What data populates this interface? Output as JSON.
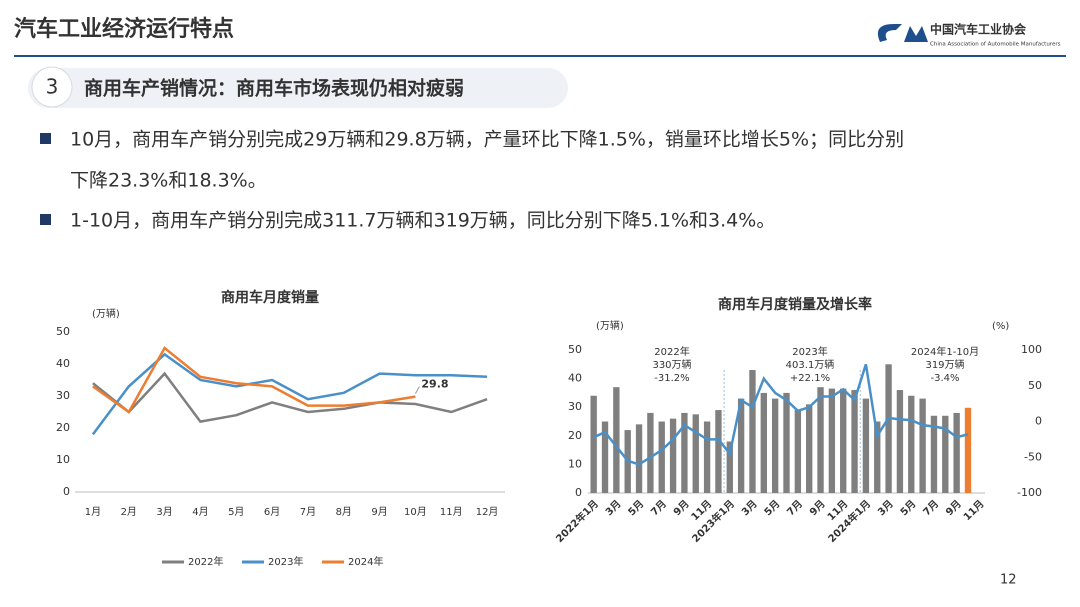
{
  "header": {
    "title": "汽车工业经济运行特点",
    "logo_name": "中国汽车工业协会",
    "logo_english": "China Association of Automobile Manufacturers"
  },
  "section": {
    "number": "3",
    "title": "商用车产销情况：商用车市场表现仍相对疲弱"
  },
  "bullets": [
    "10月，商用车产销分别完成29万辆和29.8万辆，产量环比下降1.5%，销量环比增长5%；同比分别",
    "下降23.3%和18.3%。",
    "1-10月，商用车产销分别完成311.7万辆和319万辆，同比分别下降5.1%和3.4%。"
  ],
  "page_number": "12",
  "chart_data": [
    {
      "type": "line",
      "title": "商用车月度销量",
      "y_label": "(万辆)",
      "categories": [
        "1月",
        "2月",
        "3月",
        "4月",
        "5月",
        "6月",
        "7月",
        "8月",
        "9月",
        "10月",
        "11月",
        "12月"
      ],
      "ylim": [
        0,
        50
      ],
      "yticks": [
        0,
        10,
        20,
        30,
        40,
        50
      ],
      "legend": "bottom",
      "series": [
        {
          "name": "2022年",
          "color": "#7f7f7f",
          "values": [
            34,
            25,
            37,
            22,
            24,
            28,
            25,
            26,
            28,
            27.5,
            25,
            29
          ]
        },
        {
          "name": "2023年",
          "color": "#4a90c8",
          "values": [
            18,
            33,
            43,
            35,
            33,
            35,
            29,
            31,
            37,
            36.5,
            36.5,
            36
          ]
        },
        {
          "name": "2024年",
          "color": "#ed7d31",
          "values": [
            33,
            25,
            45,
            36,
            34,
            33,
            27,
            27,
            28,
            29.8,
            null,
            null
          ]
        }
      ],
      "annotation": "29.8"
    },
    {
      "type": "bar-line",
      "title": "商用车月度销量及增长率",
      "y_label": "(万辆)",
      "y2_label": "(%)",
      "categories": [
        "2022年1月",
        null,
        "3月",
        null,
        "5月",
        null,
        "7月",
        null,
        "9月",
        null,
        "11月",
        null,
        "2023年1月",
        null,
        "3月",
        null,
        "5月",
        null,
        "7月",
        null,
        "9月",
        null,
        "11月",
        null,
        "2024年1月",
        null,
        "3月",
        null,
        "5月",
        null,
        "7月",
        null,
        "9月",
        null,
        "11月"
      ],
      "ylim": [
        0,
        50
      ],
      "yticks": [
        0,
        10,
        20,
        30,
        40,
        50
      ],
      "y2lim": [
        -100,
        100
      ],
      "y2ticks": [
        -100,
        -50,
        0,
        50,
        100
      ],
      "series": [
        {
          "type": "bar",
          "color": "#7f7f7f",
          "values": [
            34,
            25,
            37,
            22,
            24,
            28,
            25,
            26,
            28,
            27.5,
            25,
            29,
            18,
            33,
            43,
            35,
            33,
            35,
            29,
            31,
            37,
            36.5,
            36.5,
            36,
            33,
            25,
            45,
            36,
            34,
            33,
            27,
            27,
            28,
            null,
            null
          ]
        },
        {
          "type": "bar",
          "color": "#ed7d31",
          "values": [
            null,
            null,
            null,
            null,
            null,
            null,
            null,
            null,
            null,
            null,
            null,
            null,
            null,
            null,
            null,
            null,
            null,
            null,
            null,
            null,
            null,
            null,
            null,
            null,
            null,
            null,
            null,
            null,
            null,
            null,
            null,
            null,
            null,
            29.8,
            null
          ]
        },
        {
          "type": "line",
          "axis": "y2",
          "color": "#4a90c8",
          "values": [
            -22,
            -15,
            -35,
            -55,
            -60,
            -50,
            -40,
            -25,
            -5,
            -15,
            -25,
            -25,
            -45,
            30,
            20,
            60,
            40,
            30,
            15,
            20,
            35,
            35,
            45,
            30,
            80,
            -20,
            5,
            3,
            2,
            -5,
            -7,
            -10,
            -22,
            -18,
            null
          ]
        }
      ],
      "annotations": [
        {
          "lines": [
            "2022年",
            "330万辆",
            "-31.2%"
          ]
        },
        {
          "lines": [
            "2023年",
            "403.1万辆",
            "+22.1%"
          ]
        },
        {
          "lines": [
            "2024年1-10月",
            "319万辆",
            "-3.4%"
          ]
        }
      ]
    }
  ]
}
